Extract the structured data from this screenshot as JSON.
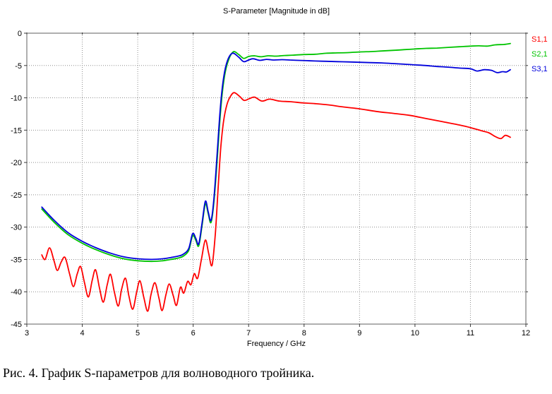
{
  "figure": {
    "title": "S-Parameter [Magnitude in dB]",
    "xlabel": "Frequency / GHz",
    "caption": "Рис. 4. График S-параметров для волноводного тройника."
  },
  "colors": {
    "background": "#ffffff",
    "axis_frame": "#5f5f5f",
    "grid": "#8f8f8f",
    "tick": "#3a3a3a",
    "text": "#000000",
    "s11": "#ff0000",
    "s21": "#00c400",
    "s31": "#0000dc"
  },
  "chart_data": {
    "type": "line",
    "title": "S-Parameter [Magnitude in dB]",
    "xlabel": "Frequency / GHz",
    "ylabel": "",
    "xlim": [
      3,
      12
    ],
    "ylim": [
      -45,
      0
    ],
    "xticks": [
      3,
      4,
      5,
      6,
      7,
      8,
      9,
      10,
      11,
      12
    ],
    "yticks": [
      0,
      -5,
      -10,
      -15,
      -20,
      -25,
      -30,
      -35,
      -40,
      -45
    ],
    "grid": "dotted",
    "legend_position": "outside-top-right",
    "series": [
      {
        "name": "S1,1",
        "color": "#ff0000",
        "points": [
          [
            3.27,
            -34.3
          ],
          [
            3.33,
            -35.0
          ],
          [
            3.41,
            -33.2
          ],
          [
            3.49,
            -35.2
          ],
          [
            3.55,
            -36.7
          ],
          [
            3.62,
            -35.4
          ],
          [
            3.69,
            -34.7
          ],
          [
            3.77,
            -37.2
          ],
          [
            3.84,
            -39.2
          ],
          [
            3.91,
            -37.2
          ],
          [
            3.97,
            -36.1
          ],
          [
            4.04,
            -38.6
          ],
          [
            4.11,
            -40.8
          ],
          [
            4.18,
            -38.2
          ],
          [
            4.24,
            -36.6
          ],
          [
            4.31,
            -39.4
          ],
          [
            4.38,
            -41.6
          ],
          [
            4.45,
            -38.9
          ],
          [
            4.51,
            -37.3
          ],
          [
            4.58,
            -40.1
          ],
          [
            4.65,
            -42.2
          ],
          [
            4.71,
            -39.6
          ],
          [
            4.78,
            -37.9
          ],
          [
            4.84,
            -40.6
          ],
          [
            4.91,
            -42.7
          ],
          [
            4.98,
            -40.1
          ],
          [
            5.04,
            -38.3
          ],
          [
            5.11,
            -40.9
          ],
          [
            5.18,
            -43.0
          ],
          [
            5.24,
            -40.4
          ],
          [
            5.31,
            -38.6
          ],
          [
            5.38,
            -40.9
          ],
          [
            5.44,
            -42.9
          ],
          [
            5.51,
            -40.4
          ],
          [
            5.57,
            -38.8
          ],
          [
            5.64,
            -40.6
          ],
          [
            5.7,
            -42.1
          ],
          [
            5.77,
            -39.3
          ],
          [
            5.83,
            -40.2
          ],
          [
            5.9,
            -38.4
          ],
          [
            5.96,
            -38.9
          ],
          [
            6.02,
            -37.2
          ],
          [
            6.08,
            -37.9
          ],
          [
            6.15,
            -34.9
          ],
          [
            6.22,
            -32.0
          ],
          [
            6.28,
            -34.1
          ],
          [
            6.34,
            -35.9
          ],
          [
            6.4,
            -31.0
          ],
          [
            6.45,
            -24.0
          ],
          [
            6.5,
            -17.5
          ],
          [
            6.55,
            -13.5
          ],
          [
            6.61,
            -11.0
          ],
          [
            6.67,
            -9.8
          ],
          [
            6.74,
            -9.2
          ],
          [
            6.84,
            -9.8
          ],
          [
            6.92,
            -10.4
          ],
          [
            7.02,
            -10.1
          ],
          [
            7.11,
            -9.9
          ],
          [
            7.24,
            -10.5
          ],
          [
            7.38,
            -10.2
          ],
          [
            7.55,
            -10.5
          ],
          [
            7.75,
            -10.6
          ],
          [
            8.0,
            -10.8
          ],
          [
            8.2,
            -10.9
          ],
          [
            8.45,
            -11.1
          ],
          [
            8.7,
            -11.4
          ],
          [
            9.0,
            -11.7
          ],
          [
            9.3,
            -12.1
          ],
          [
            9.6,
            -12.4
          ],
          [
            9.9,
            -12.7
          ],
          [
            10.2,
            -13.2
          ],
          [
            10.5,
            -13.7
          ],
          [
            10.8,
            -14.2
          ],
          [
            11.0,
            -14.6
          ],
          [
            11.2,
            -15.1
          ],
          [
            11.33,
            -15.4
          ],
          [
            11.45,
            -16.0
          ],
          [
            11.55,
            -16.3
          ],
          [
            11.63,
            -15.8
          ],
          [
            11.72,
            -16.1
          ]
        ]
      },
      {
        "name": "S2,1",
        "color": "#00c400",
        "points": [
          [
            3.27,
            -27.2
          ],
          [
            3.5,
            -29.3
          ],
          [
            3.75,
            -31.2
          ],
          [
            4.0,
            -32.5
          ],
          [
            4.25,
            -33.5
          ],
          [
            4.5,
            -34.3
          ],
          [
            4.75,
            -34.9
          ],
          [
            5.0,
            -35.2
          ],
          [
            5.25,
            -35.3
          ],
          [
            5.45,
            -35.2
          ],
          [
            5.6,
            -35.0
          ],
          [
            5.72,
            -34.8
          ],
          [
            5.82,
            -34.5
          ],
          [
            5.92,
            -33.6
          ],
          [
            5.99,
            -31.3
          ],
          [
            6.05,
            -32.1
          ],
          [
            6.1,
            -32.9
          ],
          [
            6.16,
            -29.8
          ],
          [
            6.22,
            -26.4
          ],
          [
            6.27,
            -27.9
          ],
          [
            6.32,
            -29.3
          ],
          [
            6.37,
            -26.5
          ],
          [
            6.43,
            -20.0
          ],
          [
            6.49,
            -12.5
          ],
          [
            6.55,
            -7.5
          ],
          [
            6.62,
            -4.6
          ],
          [
            6.72,
            -2.9
          ],
          [
            6.82,
            -3.3
          ],
          [
            6.91,
            -3.9
          ],
          [
            7.0,
            -3.6
          ],
          [
            7.1,
            -3.5
          ],
          [
            7.22,
            -3.65
          ],
          [
            7.35,
            -3.5
          ],
          [
            7.5,
            -3.55
          ],
          [
            7.65,
            -3.45
          ],
          [
            7.8,
            -3.4
          ],
          [
            8.0,
            -3.3
          ],
          [
            8.2,
            -3.25
          ],
          [
            8.4,
            -3.1
          ],
          [
            8.6,
            -3.05
          ],
          [
            8.8,
            -3.0
          ],
          [
            9.0,
            -2.9
          ],
          [
            9.2,
            -2.85
          ],
          [
            9.4,
            -2.75
          ],
          [
            9.6,
            -2.65
          ],
          [
            9.8,
            -2.55
          ],
          [
            10.0,
            -2.45
          ],
          [
            10.2,
            -2.35
          ],
          [
            10.4,
            -2.3
          ],
          [
            10.6,
            -2.2
          ],
          [
            10.8,
            -2.1
          ],
          [
            11.0,
            -2.0
          ],
          [
            11.15,
            -1.95
          ],
          [
            11.3,
            -2.0
          ],
          [
            11.45,
            -1.8
          ],
          [
            11.6,
            -1.75
          ],
          [
            11.72,
            -1.6
          ]
        ]
      },
      {
        "name": "S3,1",
        "color": "#0000dc",
        "points": [
          [
            3.27,
            -26.9
          ],
          [
            3.5,
            -29.0
          ],
          [
            3.75,
            -30.9
          ],
          [
            4.0,
            -32.2
          ],
          [
            4.25,
            -33.2
          ],
          [
            4.5,
            -34.0
          ],
          [
            4.75,
            -34.6
          ],
          [
            5.0,
            -34.9
          ],
          [
            5.25,
            -35.0
          ],
          [
            5.45,
            -34.9
          ],
          [
            5.6,
            -34.7
          ],
          [
            5.72,
            -34.5
          ],
          [
            5.82,
            -34.2
          ],
          [
            5.92,
            -33.3
          ],
          [
            5.99,
            -31.0
          ],
          [
            6.05,
            -31.8
          ],
          [
            6.1,
            -32.6
          ],
          [
            6.16,
            -29.4
          ],
          [
            6.22,
            -26.0
          ],
          [
            6.27,
            -27.6
          ],
          [
            6.32,
            -29.0
          ],
          [
            6.37,
            -26.0
          ],
          [
            6.43,
            -19.0
          ],
          [
            6.49,
            -11.5
          ],
          [
            6.55,
            -6.8
          ],
          [
            6.62,
            -4.2
          ],
          [
            6.71,
            -3.1
          ],
          [
            6.82,
            -3.7
          ],
          [
            6.91,
            -4.4
          ],
          [
            7.0,
            -4.15
          ],
          [
            7.08,
            -3.95
          ],
          [
            7.2,
            -4.2
          ],
          [
            7.32,
            -4.05
          ],
          [
            7.45,
            -4.15
          ],
          [
            7.6,
            -4.1
          ],
          [
            7.75,
            -4.15
          ],
          [
            7.9,
            -4.2
          ],
          [
            8.05,
            -4.25
          ],
          [
            8.2,
            -4.3
          ],
          [
            8.4,
            -4.35
          ],
          [
            8.6,
            -4.4
          ],
          [
            8.8,
            -4.45
          ],
          [
            9.0,
            -4.5
          ],
          [
            9.2,
            -4.55
          ],
          [
            9.4,
            -4.6
          ],
          [
            9.6,
            -4.7
          ],
          [
            9.8,
            -4.8
          ],
          [
            10.0,
            -4.9
          ],
          [
            10.2,
            -5.0
          ],
          [
            10.4,
            -5.15
          ],
          [
            10.6,
            -5.25
          ],
          [
            10.8,
            -5.4
          ],
          [
            11.0,
            -5.5
          ],
          [
            11.12,
            -5.85
          ],
          [
            11.25,
            -5.65
          ],
          [
            11.38,
            -5.75
          ],
          [
            11.48,
            -6.1
          ],
          [
            11.58,
            -5.95
          ],
          [
            11.65,
            -6.0
          ],
          [
            11.72,
            -5.65
          ]
        ]
      }
    ]
  }
}
